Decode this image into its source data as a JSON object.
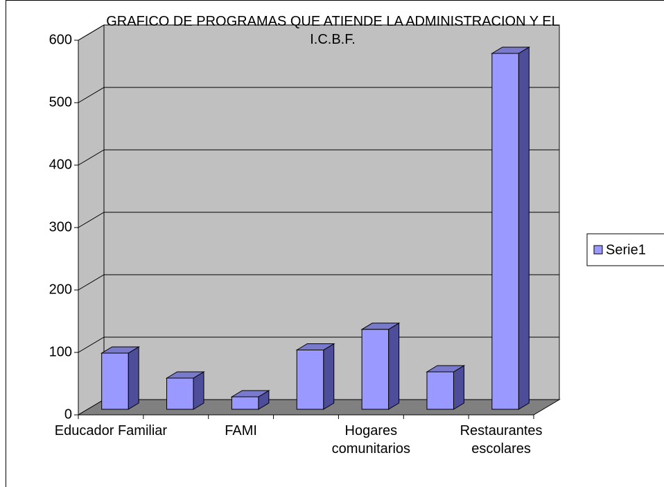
{
  "chart_data": {
    "type": "bar3d",
    "title": "GRAFICO DE PROGRAMAS QUE ATIENDE LA ADMINISTRACION Y EL I.C.B.F.",
    "categories": [
      "Educador Familiar",
      null,
      "FAMI",
      null,
      "Hogares comunitarios",
      null,
      "Restaurantes escolares"
    ],
    "series": [
      {
        "name": "Serie1",
        "color": "#9999ff",
        "values": [
          90,
          50,
          20,
          95,
          128,
          60,
          570
        ]
      }
    ],
    "ylim": [
      0,
      600
    ],
    "yticks": [
      0,
      100,
      200,
      300,
      400,
      500,
      600
    ],
    "grid": true,
    "legend": "right"
  }
}
